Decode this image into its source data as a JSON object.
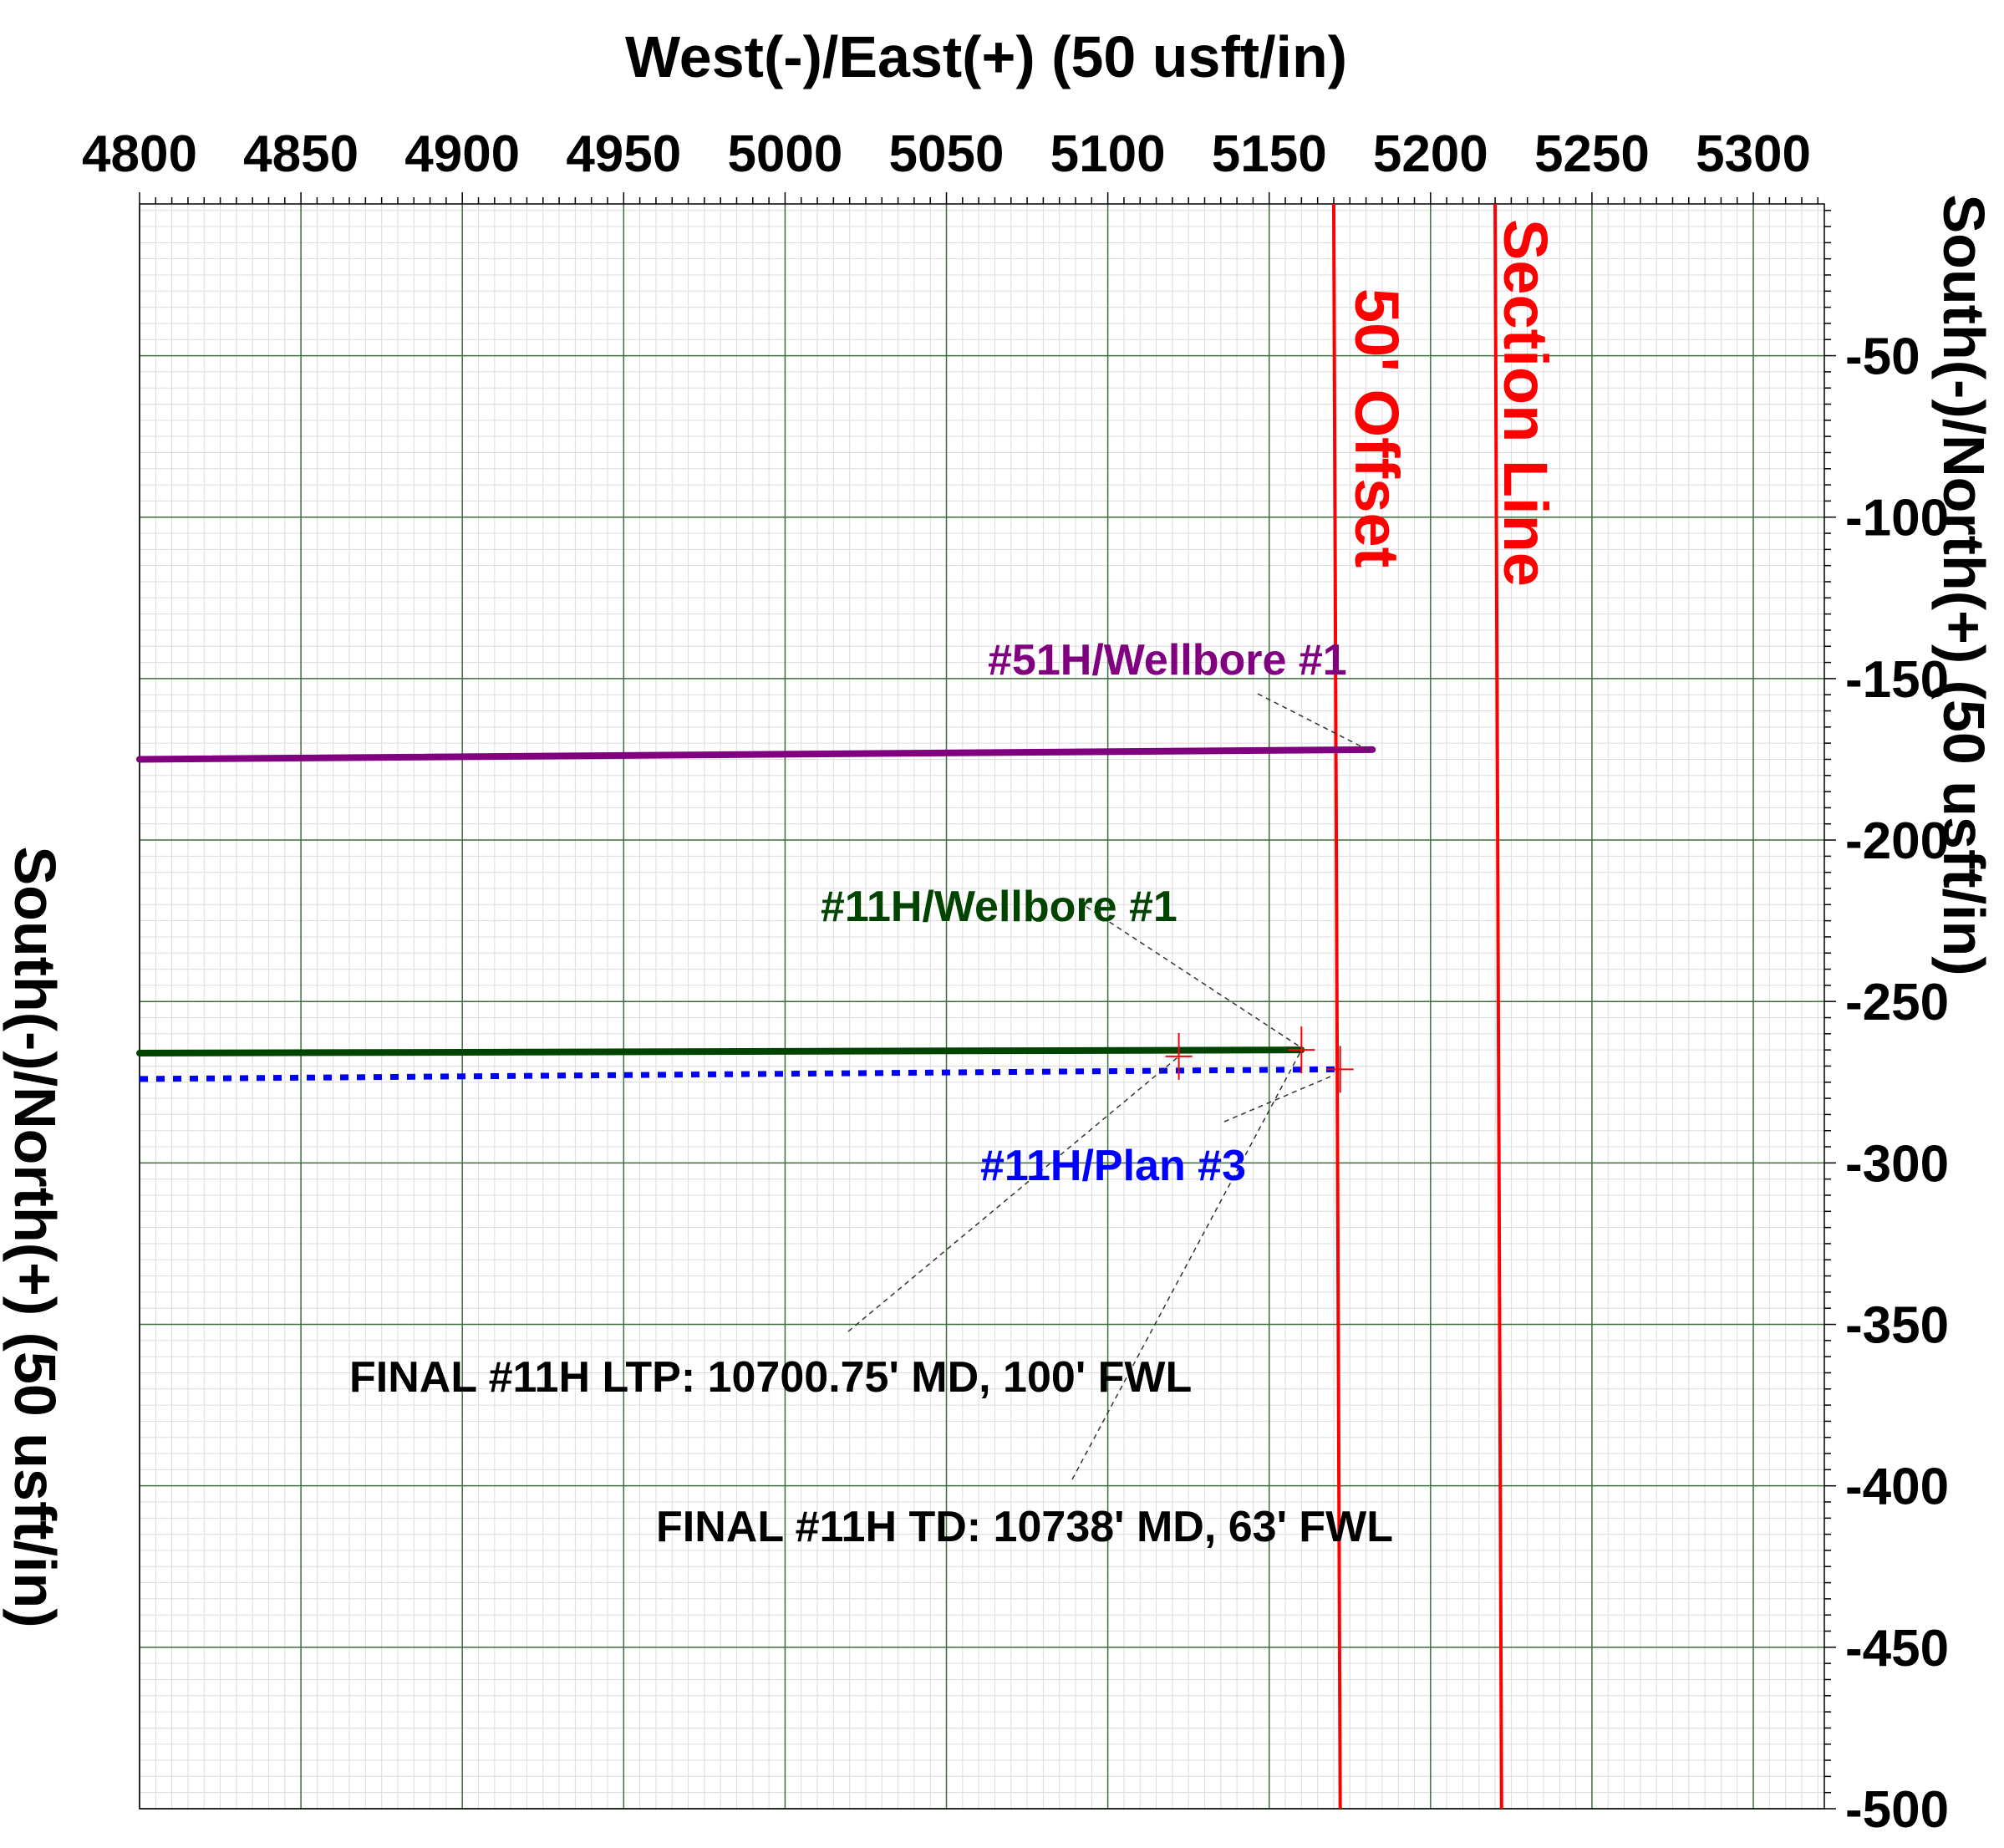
{
  "chart_data": {
    "type": "line",
    "x_axis": {
      "label": "West(-)/East(+) (50 usft/in)",
      "ticks": [
        4800,
        4850,
        4900,
        4950,
        5000,
        5050,
        5100,
        5150,
        5200,
        5250,
        5300
      ],
      "range": [
        4800,
        5322
      ]
    },
    "y_axis": {
      "label": "South(-)/North(+) (50 usft/in)",
      "ticks": [
        -50,
        -100,
        -150,
        -200,
        -250,
        -300,
        -350,
        -400,
        -450,
        -500
      ],
      "range": [
        -500,
        -3
      ]
    },
    "grid": true,
    "series": [
      {
        "name": "#51H/Wellbore #1",
        "color": "#800080",
        "style": "solid",
        "points": [
          [
            4800,
            -175
          ],
          [
            5182,
            -172
          ]
        ]
      },
      {
        "name": "#11H/Wellbore #1",
        "color": "#004400",
        "style": "solid",
        "points": [
          [
            4800,
            -266
          ],
          [
            5160,
            -265
          ]
        ]
      },
      {
        "name": "#11H/Plan #3",
        "color": "#0000ff",
        "style": "dotted",
        "points": [
          [
            4800,
            -274
          ],
          [
            5172,
            -271
          ]
        ]
      }
    ],
    "markers": [
      {
        "x": 5122,
        "y": -267,
        "color": "#ff0000"
      },
      {
        "x": 5160,
        "y": -265,
        "color": "#ff0000"
      },
      {
        "x": 5172,
        "y": -271,
        "color": "#ff0000"
      }
    ],
    "boundary_lines": [
      {
        "label": "50' Offset",
        "color": "#ff0000",
        "x_top": 5170,
        "x_bottom": 5172
      },
      {
        "label": "Section Line",
        "color": "#ff0000",
        "x_top": 5220,
        "x_bottom": 5222
      }
    ],
    "annotations": [
      {
        "text": "FINAL #11H LTP: 10700.75' MD, 100' FWL",
        "x": 5122,
        "y": -267
      },
      {
        "text": "FINAL #11H TD: 10738' MD, 63' FWL",
        "x": 5160,
        "y": -265
      }
    ]
  }
}
